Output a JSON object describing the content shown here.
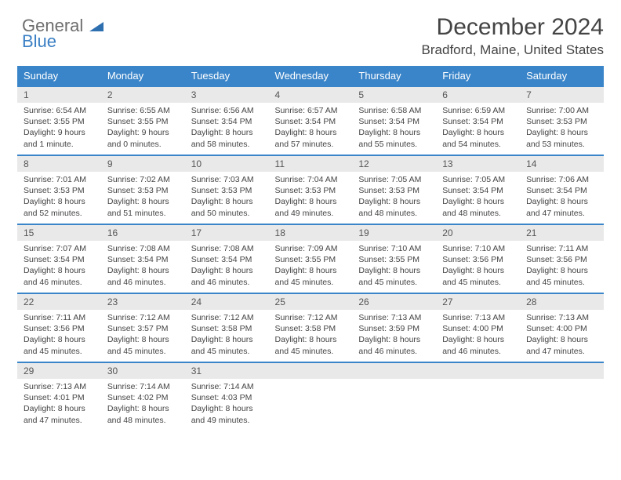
{
  "logo": {
    "line1": "General",
    "line2": "Blue"
  },
  "header": {
    "month_title": "December 2024",
    "location": "Bradford, Maine, United States"
  },
  "colors": {
    "header_bg": "#3a85c9",
    "header_text": "#ffffff",
    "daynum_bg": "#e9e9e9",
    "row_divider": "#3a85c9",
    "body_text": "#444444",
    "logo_gray": "#6e6e6e",
    "logo_blue": "#3a7fc4"
  },
  "weekdays": [
    "Sunday",
    "Monday",
    "Tuesday",
    "Wednesday",
    "Thursday",
    "Friday",
    "Saturday"
  ],
  "labels": {
    "sunrise": "Sunrise:",
    "sunset": "Sunset:",
    "daylight": "Daylight:"
  },
  "days": [
    {
      "n": "1",
      "sr": "6:54 AM",
      "ss": "3:55 PM",
      "dl": "9 hours and 1 minute."
    },
    {
      "n": "2",
      "sr": "6:55 AM",
      "ss": "3:55 PM",
      "dl": "9 hours and 0 minutes."
    },
    {
      "n": "3",
      "sr": "6:56 AM",
      "ss": "3:54 PM",
      "dl": "8 hours and 58 minutes."
    },
    {
      "n": "4",
      "sr": "6:57 AM",
      "ss": "3:54 PM",
      "dl": "8 hours and 57 minutes."
    },
    {
      "n": "5",
      "sr": "6:58 AM",
      "ss": "3:54 PM",
      "dl": "8 hours and 55 minutes."
    },
    {
      "n": "6",
      "sr": "6:59 AM",
      "ss": "3:54 PM",
      "dl": "8 hours and 54 minutes."
    },
    {
      "n": "7",
      "sr": "7:00 AM",
      "ss": "3:53 PM",
      "dl": "8 hours and 53 minutes."
    },
    {
      "n": "8",
      "sr": "7:01 AM",
      "ss": "3:53 PM",
      "dl": "8 hours and 52 minutes."
    },
    {
      "n": "9",
      "sr": "7:02 AM",
      "ss": "3:53 PM",
      "dl": "8 hours and 51 minutes."
    },
    {
      "n": "10",
      "sr": "7:03 AM",
      "ss": "3:53 PM",
      "dl": "8 hours and 50 minutes."
    },
    {
      "n": "11",
      "sr": "7:04 AM",
      "ss": "3:53 PM",
      "dl": "8 hours and 49 minutes."
    },
    {
      "n": "12",
      "sr": "7:05 AM",
      "ss": "3:53 PM",
      "dl": "8 hours and 48 minutes."
    },
    {
      "n": "13",
      "sr": "7:05 AM",
      "ss": "3:54 PM",
      "dl": "8 hours and 48 minutes."
    },
    {
      "n": "14",
      "sr": "7:06 AM",
      "ss": "3:54 PM",
      "dl": "8 hours and 47 minutes."
    },
    {
      "n": "15",
      "sr": "7:07 AM",
      "ss": "3:54 PM",
      "dl": "8 hours and 46 minutes."
    },
    {
      "n": "16",
      "sr": "7:08 AM",
      "ss": "3:54 PM",
      "dl": "8 hours and 46 minutes."
    },
    {
      "n": "17",
      "sr": "7:08 AM",
      "ss": "3:54 PM",
      "dl": "8 hours and 46 minutes."
    },
    {
      "n": "18",
      "sr": "7:09 AM",
      "ss": "3:55 PM",
      "dl": "8 hours and 45 minutes."
    },
    {
      "n": "19",
      "sr": "7:10 AM",
      "ss": "3:55 PM",
      "dl": "8 hours and 45 minutes."
    },
    {
      "n": "20",
      "sr": "7:10 AM",
      "ss": "3:56 PM",
      "dl": "8 hours and 45 minutes."
    },
    {
      "n": "21",
      "sr": "7:11 AM",
      "ss": "3:56 PM",
      "dl": "8 hours and 45 minutes."
    },
    {
      "n": "22",
      "sr": "7:11 AM",
      "ss": "3:56 PM",
      "dl": "8 hours and 45 minutes."
    },
    {
      "n": "23",
      "sr": "7:12 AM",
      "ss": "3:57 PM",
      "dl": "8 hours and 45 minutes."
    },
    {
      "n": "24",
      "sr": "7:12 AM",
      "ss": "3:58 PM",
      "dl": "8 hours and 45 minutes."
    },
    {
      "n": "25",
      "sr": "7:12 AM",
      "ss": "3:58 PM",
      "dl": "8 hours and 45 minutes."
    },
    {
      "n": "26",
      "sr": "7:13 AM",
      "ss": "3:59 PM",
      "dl": "8 hours and 46 minutes."
    },
    {
      "n": "27",
      "sr": "7:13 AM",
      "ss": "4:00 PM",
      "dl": "8 hours and 46 minutes."
    },
    {
      "n": "28",
      "sr": "7:13 AM",
      "ss": "4:00 PM",
      "dl": "8 hours and 47 minutes."
    },
    {
      "n": "29",
      "sr": "7:13 AM",
      "ss": "4:01 PM",
      "dl": "8 hours and 47 minutes."
    },
    {
      "n": "30",
      "sr": "7:14 AM",
      "ss": "4:02 PM",
      "dl": "8 hours and 48 minutes."
    },
    {
      "n": "31",
      "sr": "7:14 AM",
      "ss": "4:03 PM",
      "dl": "8 hours and 49 minutes."
    }
  ],
  "grid": {
    "leading_blanks": 0,
    "trailing_blanks": 4
  }
}
